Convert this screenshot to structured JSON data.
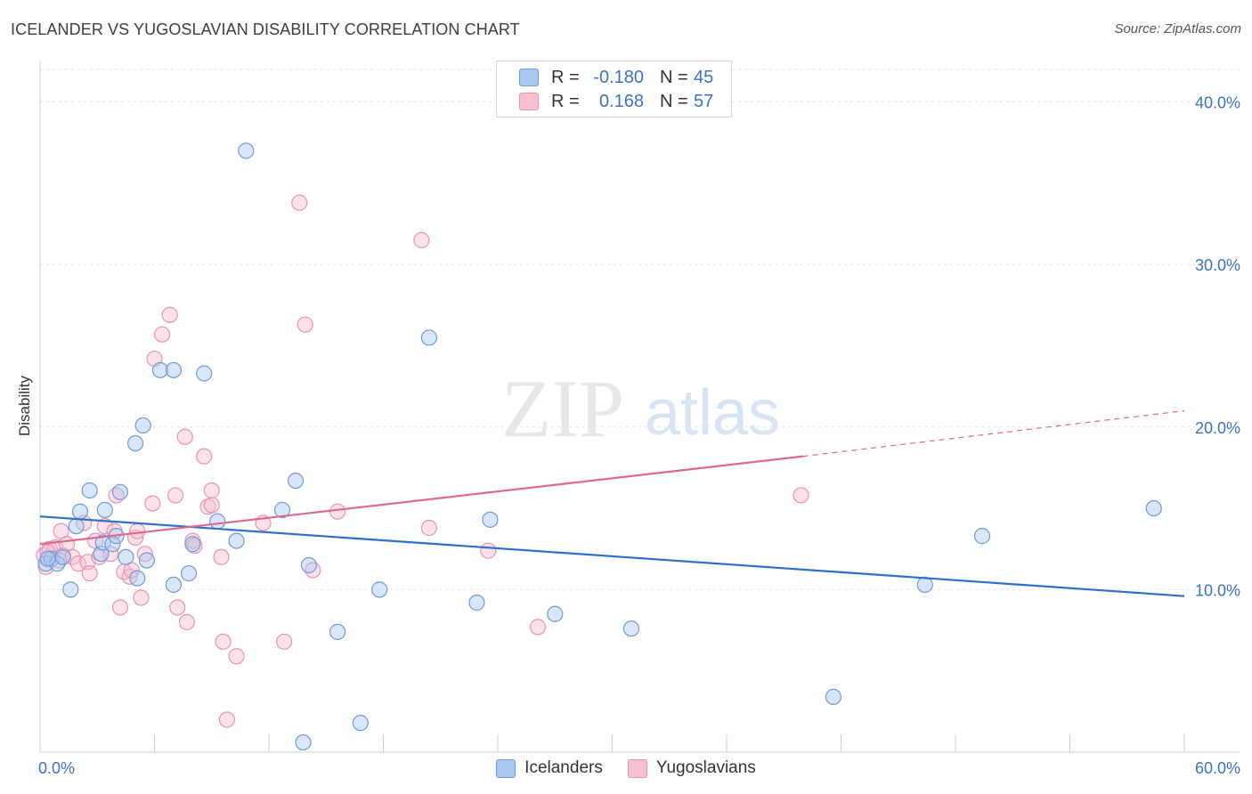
{
  "title": "ICELANDER VS YUGOSLAVIAN DISABILITY CORRELATION CHART",
  "source": "Source: ZipAtlas.com",
  "watermark": {
    "zip": "ZIP",
    "atlas": "atlas"
  },
  "legend": {
    "rows": [
      {
        "r_label": "R =",
        "r_value": "-0.180",
        "n_label": "N =",
        "n_value": "45"
      },
      {
        "r_label": "R =",
        "r_value": "0.168",
        "n_label": "N =",
        "n_value": "57"
      }
    ]
  },
  "colors": {
    "icelanders_fill": "#a8c8f0",
    "icelanders_stroke": "#6f9ad8",
    "icelanders_line": "#2f6fc9",
    "yugoslavians_fill": "#f7bfd1",
    "yugoslavians_stroke": "#e893b0",
    "yugoslavians_line": "#e0668e",
    "axis_label": "#3b72c4"
  },
  "chart_data": {
    "type": "scatter",
    "title": "ICELANDER VS YUGOSLAVIAN DISABILITY CORRELATION CHART",
    "xlabel": "",
    "ylabel": "Disability",
    "xlim": [
      0,
      60
    ],
    "ylim": [
      0,
      42
    ],
    "x_tick_labels": [
      "0.0%",
      "60.0%"
    ],
    "y_ticks": [
      10,
      20,
      30,
      40
    ],
    "y_tick_labels": [
      "10.0%",
      "20.0%",
      "30.0%",
      "40.0%"
    ],
    "grid": true,
    "legend_position": "top-center",
    "series": [
      {
        "name": "Icelanders",
        "trend": {
          "x0": 0,
          "y0": 14.5,
          "x1": 60,
          "y1": 9.6
        },
        "points": [
          [
            0.3,
            11.6
          ],
          [
            0.6,
            11.9
          ],
          [
            0.9,
            11.6
          ],
          [
            1.2,
            12.0
          ],
          [
            1.6,
            10.0
          ],
          [
            1.9,
            13.9
          ],
          [
            2.1,
            14.8
          ],
          [
            2.6,
            16.1
          ],
          [
            3.2,
            12.2
          ],
          [
            3.3,
            12.9
          ],
          [
            3.4,
            14.9
          ],
          [
            3.8,
            12.8
          ],
          [
            4.0,
            13.3
          ],
          [
            4.2,
            16.0
          ],
          [
            4.5,
            12.0
          ],
          [
            5.1,
            10.7
          ],
          [
            5.4,
            20.1
          ],
          [
            5.0,
            19.0
          ],
          [
            5.6,
            11.8
          ],
          [
            6.3,
            23.5
          ],
          [
            7.0,
            23.5
          ],
          [
            7.0,
            10.3
          ],
          [
            7.8,
            11.0
          ],
          [
            8.0,
            12.8
          ],
          [
            8.6,
            23.3
          ],
          [
            9.3,
            14.2
          ],
          [
            10.3,
            13.0
          ],
          [
            10.8,
            37.0
          ],
          [
            12.7,
            14.9
          ],
          [
            13.4,
            16.7
          ],
          [
            13.8,
            0.6
          ],
          [
            14.1,
            11.5
          ],
          [
            15.6,
            7.4
          ],
          [
            16.8,
            1.8
          ],
          [
            17.8,
            10.0
          ],
          [
            20.4,
            25.5
          ],
          [
            22.9,
            9.2
          ],
          [
            23.6,
            14.3
          ],
          [
            27.0,
            8.5
          ],
          [
            31.0,
            7.6
          ],
          [
            41.6,
            3.4
          ],
          [
            46.4,
            10.3
          ],
          [
            49.4,
            13.3
          ],
          [
            58.4,
            15.0
          ],
          [
            0.4,
            11.9
          ]
        ]
      },
      {
        "name": "Yugoslavians",
        "trend": {
          "x0": 0,
          "y0": 12.8,
          "x1": 40,
          "y1": 18.2,
          "dash_x1": 60,
          "dash_y1": 21.0
        },
        "points": [
          [
            0.2,
            12.1
          ],
          [
            0.3,
            11.4
          ],
          [
            0.5,
            12.5
          ],
          [
            0.8,
            12.6
          ],
          [
            1.1,
            13.6
          ],
          [
            1.2,
            12.1
          ],
          [
            1.4,
            12.8
          ],
          [
            1.7,
            12.0
          ],
          [
            2.0,
            11.6
          ],
          [
            2.3,
            14.1
          ],
          [
            2.5,
            11.7
          ],
          [
            2.6,
            11.0
          ],
          [
            2.9,
            13.0
          ],
          [
            3.1,
            12.0
          ],
          [
            3.4,
            13.9
          ],
          [
            3.7,
            12.2
          ],
          [
            3.9,
            13.6
          ],
          [
            4.0,
            15.8
          ],
          [
            4.4,
            11.1
          ],
          [
            4.2,
            8.9
          ],
          [
            4.7,
            10.8
          ],
          [
            4.8,
            11.2
          ],
          [
            5.0,
            13.2
          ],
          [
            5.1,
            13.6
          ],
          [
            5.3,
            9.5
          ],
          [
            5.5,
            12.2
          ],
          [
            5.9,
            15.3
          ],
          [
            6.0,
            24.2
          ],
          [
            6.4,
            25.7
          ],
          [
            6.8,
            26.9
          ],
          [
            7.1,
            15.8
          ],
          [
            7.2,
            8.9
          ],
          [
            7.6,
            19.4
          ],
          [
            7.7,
            8.0
          ],
          [
            8.0,
            13.0
          ],
          [
            8.1,
            12.7
          ],
          [
            8.6,
            18.2
          ],
          [
            8.8,
            15.1
          ],
          [
            9.0,
            15.2
          ],
          [
            9.0,
            16.1
          ],
          [
            9.5,
            12.0
          ],
          [
            9.6,
            6.8
          ],
          [
            9.8,
            2.0
          ],
          [
            10.3,
            5.9
          ],
          [
            11.7,
            14.1
          ],
          [
            12.8,
            6.8
          ],
          [
            13.6,
            33.8
          ],
          [
            13.9,
            26.3
          ],
          [
            14.3,
            11.2
          ],
          [
            15.6,
            14.8
          ],
          [
            20.0,
            31.5
          ],
          [
            20.4,
            13.8
          ],
          [
            23.5,
            12.4
          ],
          [
            26.1,
            7.7
          ],
          [
            39.9,
            15.8
          ],
          [
            0.4,
            12.3
          ],
          [
            1.0,
            11.8
          ]
        ]
      }
    ]
  }
}
